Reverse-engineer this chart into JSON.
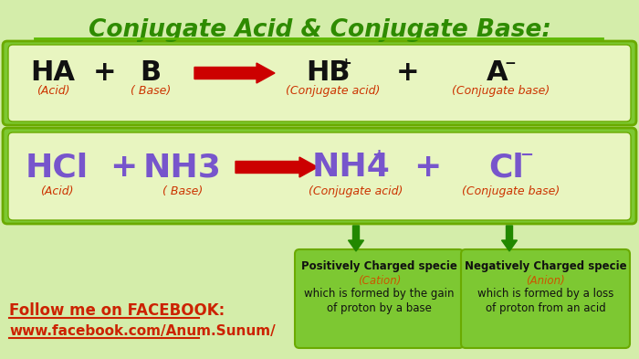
{
  "title": "Conjugate Acid & Conjugate Base:",
  "title_color": "#2e8b00",
  "title_underline_color": "#5cb800",
  "bg_color": "#d4edaa",
  "box_inner_bg": "#e8f5c0",
  "box_green_bg": "#7dc832",
  "outline_color": "#6aaa00",
  "row1_items": [
    {
      "text": "HA",
      "sub": "(Acid)",
      "text_color": "#111111",
      "sub_color": "#cc3300"
    },
    {
      "text": "+",
      "text_color": "#111111"
    },
    {
      "text": "B",
      "sub": "( Base)",
      "text_color": "#111111",
      "sub_color": "#cc3300"
    },
    {
      "text": "HB",
      "sup": "+",
      "sub": "(Conjugate acid)",
      "text_color": "#111111",
      "sub_color": "#cc3300"
    },
    {
      "text": "+",
      "text_color": "#111111"
    },
    {
      "text": "A",
      "sup": "-",
      "sub": "(Conjugate base)",
      "text_color": "#111111",
      "sub_color": "#cc3300"
    }
  ],
  "row2_items": [
    {
      "text": "HCl",
      "sub": "(Acid)",
      "text_color": "#7755cc",
      "sub_color": "#cc3300"
    },
    {
      "text": "+",
      "text_color": "#7755cc"
    },
    {
      "text": "NH3",
      "sub": "( Base)",
      "text_color": "#7755cc",
      "sub_color": "#cc3300"
    },
    {
      "text": "NH4",
      "sup": "+",
      "sub": "(Conjugate acid)",
      "text_color": "#7755cc",
      "sub_color": "#cc3300"
    },
    {
      "text": "+",
      "text_color": "#7755cc"
    },
    {
      "text": "Cl",
      "sup": "-",
      "sub": "(Conjugate base)",
      "text_color": "#7755cc",
      "sub_color": "#cc3300"
    }
  ],
  "cation_lines": [
    "Positively Charged specie",
    "(Cation)",
    "which is formed by the gain",
    "of proton by a base"
  ],
  "anion_lines": [
    "Negatively Charged specie",
    "(Anion)",
    "which is formed by a loss",
    "of proton from an acid"
  ],
  "highlight_color": "#cc5500",
  "follow_text": "Follow me on FACEBOOK:",
  "url_text": "www.facebook.com/Anum.Sunum/",
  "follow_color": "#cc2200",
  "arrow_color": "#cc0000",
  "green_arrow_color": "#228800"
}
